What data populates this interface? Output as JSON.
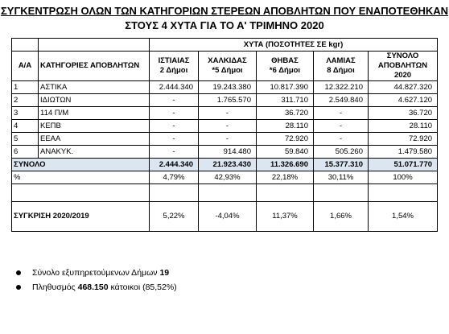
{
  "title_line1": "ΣΥΓΚΕΝΤΡΩΣΗ ΟΛΩΝ ΤΩΝ ΚΑΤΗΓΟΡΙΩΝ ΣΤΕΡΕΩΝ ΑΠΟΒΛΗΤΩΝ ΠΟΥ ΕΝΑΠΟΤΕΘΗΚΑΝ",
  "title_line2": "ΣΤΟΥΣ 4 ΧΥΤΑ ΓΙΑ ΤΟ Α' ΤΡΙΜΗΝΟ 2020",
  "table": {
    "group_header": "ΧΥΤΑ (ΠΟΣΟΤΗΤΕΣ ΣΕ kgr)",
    "col_headers": [
      "Α/Α",
      "ΚΑΤΗΓΟΡΙΕΣ ΑΠΟΒΛΗΤΩΝ",
      "ΙΣΤΙΑΙΑΣ\n2 Δήμοι",
      "ΧΑΛΚΙΔΑΣ\n*5 Δήμοι",
      "ΘΗΒΑΣ\n*6 Δήμοι",
      "ΛΑΜΙΑΣ\n8 Δήμοι",
      "ΣΥΝΟΛΟ\nΑΠΟΒΛΗΤΩΝ\n2020"
    ],
    "rows": [
      [
        "1",
        "ΑΣΤΙΚΑ",
        "2.444.340",
        "19.243.380",
        "10.817.390",
        "12.322.210",
        "44.827.320"
      ],
      [
        "2",
        "ΙΔΙΩΤΩΝ",
        "-",
        "1.765.570",
        "311.710",
        "2.549.840",
        "4.627.120"
      ],
      [
        "3",
        "114 Π/Μ",
        "-",
        "-",
        "36.720",
        "-",
        "36.720"
      ],
      [
        "4",
        "ΚΕΠΒ",
        "-",
        "-",
        "28.110",
        "-",
        "28.110"
      ],
      [
        "5",
        "ΕΕΑΑ",
        "-",
        "-",
        "72.920",
        "-",
        "72.920"
      ],
      [
        "6",
        "ΑΝΑΚΥΚ.",
        "-",
        "914.480",
        "59.840",
        "505.260",
        "1.479.580"
      ]
    ],
    "total_row": [
      "ΣΥΝΟΛΟ",
      "2.444.340",
      "21.923.430",
      "11.326.690",
      "15.377.310",
      "51.071.770"
    ],
    "percent_row": [
      "%",
      "4,79%",
      "42,93%",
      "22,18%",
      "30,11%",
      "100%"
    ],
    "compare_row": [
      "ΣΥΓΚΡΙΣΗ  2020/2019",
      "5,22%",
      "-4,04%",
      "11,37%",
      "1,66%",
      "1,54%"
    ]
  },
  "bullets": [
    {
      "text": "Σύνολο εξυπηρετούμενων Δήμων ",
      "bold": "19",
      "after": ""
    },
    {
      "text": "Πληθυσμός ",
      "bold": "468.150",
      "after": " κάτοικοι (85,52%)"
    }
  ]
}
